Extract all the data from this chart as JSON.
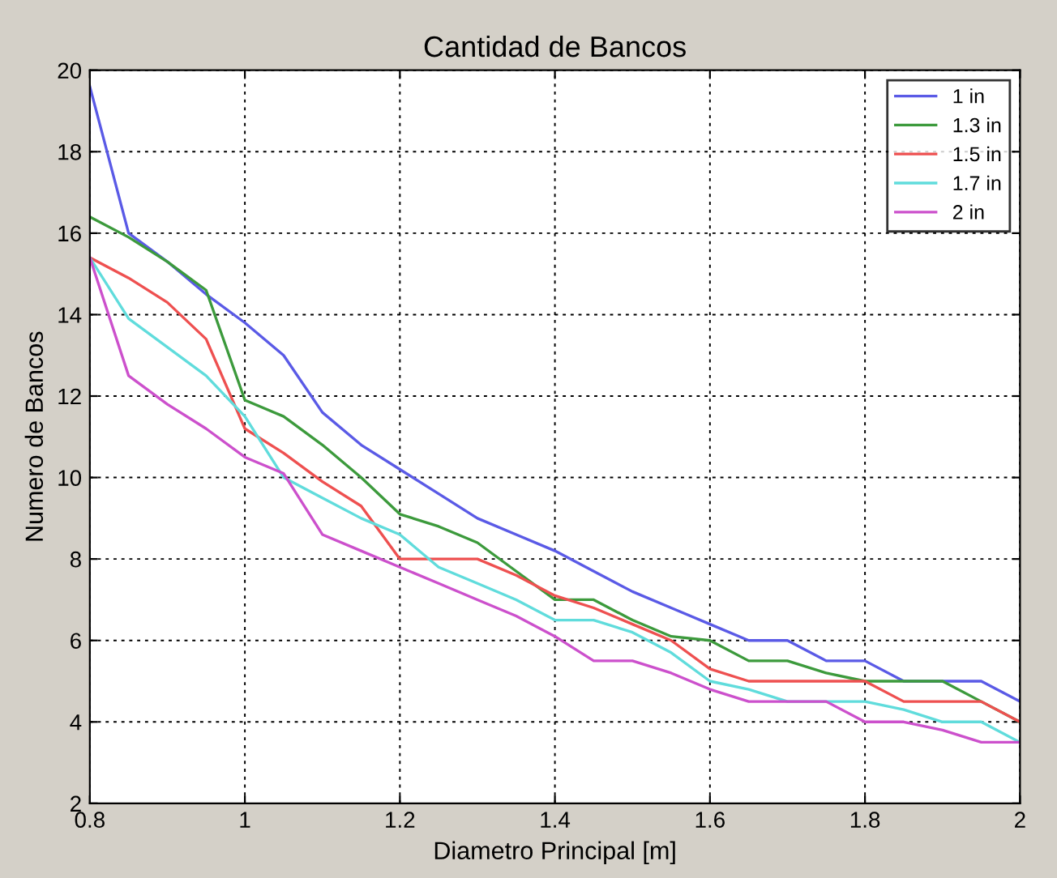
{
  "chart_data": {
    "type": "line",
    "title": "Cantidad de Bancos",
    "xlabel": "Diametro Principal [m]",
    "ylabel": "Numero de Bancos",
    "x": [
      0.8,
      0.85,
      0.9,
      0.95,
      1.0,
      1.05,
      1.1,
      1.15,
      1.2,
      1.25,
      1.3,
      1.35,
      1.4,
      1.45,
      1.5,
      1.55,
      1.6,
      1.65,
      1.7,
      1.75,
      1.8,
      1.85,
      1.9,
      1.95,
      2.0
    ],
    "series": [
      {
        "name": "1 in",
        "color": "#5a5ae6",
        "values": [
          19.6,
          16,
          15.3,
          14.5,
          13.8,
          13.0,
          11.6,
          10.8,
          10.2,
          9.6,
          9.0,
          8.6,
          8.2,
          7.7,
          7.2,
          6.8,
          6.4,
          6.0,
          6.0,
          5.5,
          5.5,
          5.0,
          5.0,
          5.0,
          4.5
        ]
      },
      {
        "name": "1.3 in",
        "color": "#3c9a3c",
        "values": [
          16.4,
          15.9,
          15.3,
          14.6,
          11.9,
          11.5,
          10.8,
          10.0,
          9.1,
          8.8,
          8.4,
          7.7,
          7.0,
          7.0,
          6.5,
          6.1,
          6.0,
          5.5,
          5.5,
          5.2,
          5.0,
          5.0,
          5.0,
          4.5,
          4.0
        ]
      },
      {
        "name": "1.5 in",
        "color": "#ee5050",
        "values": [
          15.4,
          14.9,
          14.3,
          13.4,
          11.2,
          10.6,
          9.9,
          9.3,
          8.0,
          8.0,
          8.0,
          7.6,
          7.1,
          6.8,
          6.4,
          6.0,
          5.3,
          5.0,
          5.0,
          5.0,
          5.0,
          4.5,
          4.5,
          4.5,
          4.0
        ]
      },
      {
        "name": "1.7 in",
        "color": "#60dcdc",
        "values": [
          15.4,
          13.9,
          13.2,
          12.5,
          11.5,
          10.0,
          9.5,
          9.0,
          8.6,
          7.8,
          7.4,
          7.0,
          6.5,
          6.5,
          6.2,
          5.7,
          5.0,
          4.8,
          4.5,
          4.5,
          4.5,
          4.3,
          4.0,
          4.0,
          3.5
        ]
      },
      {
        "name": "2 in",
        "color": "#cc50cc",
        "values": [
          15.4,
          12.5,
          11.8,
          11.2,
          10.5,
          10.1,
          8.6,
          8.2,
          7.8,
          7.4,
          7.0,
          6.6,
          6.1,
          5.5,
          5.5,
          5.2,
          4.8,
          4.5,
          4.5,
          4.5,
          4.0,
          4.0,
          3.8,
          3.5,
          3.5
        ]
      }
    ],
    "xlim": [
      0.8,
      2
    ],
    "ylim": [
      2,
      20
    ],
    "xticks": [
      0.8,
      1,
      1.2,
      1.4,
      1.6,
      1.8,
      2
    ],
    "yticks": [
      2,
      4,
      6,
      8,
      10,
      12,
      14,
      16,
      18,
      20
    ],
    "grid": true,
    "legend": "top right",
    "line_style": "solid",
    "marker": "none"
  }
}
